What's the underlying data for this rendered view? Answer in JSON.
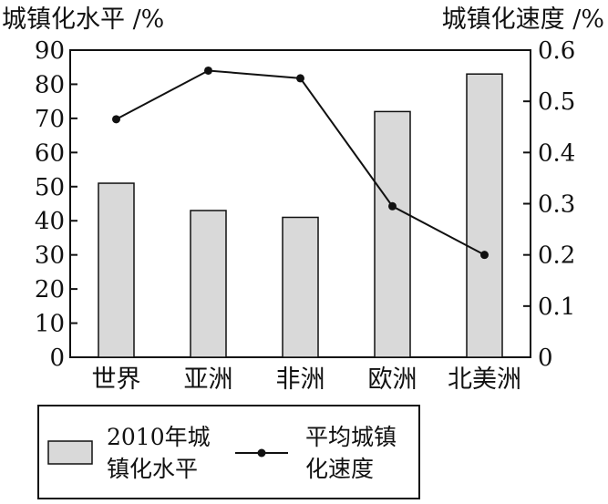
{
  "chart_data": {
    "type": "bar",
    "categories": [
      "世界",
      "亚洲",
      "非洲",
      "欧洲",
      "北美洲"
    ],
    "y_left_label": "城镇化水平 /%",
    "y_right_label": "城镇化速度 /%",
    "y_left_ticks": [
      "0",
      "10",
      "20",
      "30",
      "40",
      "50",
      "60",
      "70",
      "80",
      "90"
    ],
    "y_right_ticks": [
      "0",
      "0.1",
      "0.2",
      "0.3",
      "0.4",
      "0.5",
      "0.6"
    ],
    "ylim_left": [
      0,
      90
    ],
    "ylim_right": [
      0,
      0.6
    ],
    "grid": false,
    "legend_position": "bottom",
    "series": [
      {
        "name": "2010年城镇化水平",
        "type": "bar",
        "axis": "left",
        "values": [
          51,
          43,
          41,
          72,
          83
        ],
        "color": "#d9d9d9"
      },
      {
        "name": "平均城镇化速度",
        "type": "line",
        "axis": "right",
        "values": [
          0.465,
          0.56,
          0.545,
          0.295,
          0.2
        ],
        "color": "#111111"
      }
    ],
    "legend": {
      "bar_label_lines": [
        "2010年城",
        "镇化水平"
      ],
      "line_label_lines": [
        "平均城镇",
        "化速度"
      ]
    }
  }
}
